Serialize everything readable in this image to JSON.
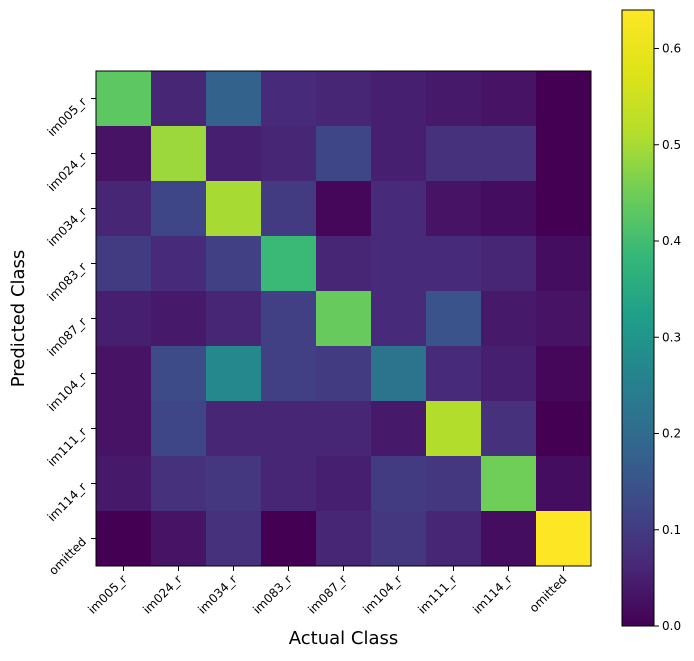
{
  "chart_data": {
    "type": "heatmap",
    "title": "",
    "xlabel": "Actual Class",
    "ylabel": "Predicted Class",
    "x_categories": [
      "im005_r",
      "im024_r",
      "im034_r",
      "im083_r",
      "im087_r",
      "im104_r",
      "im111_r",
      "im114_r",
      "omitted"
    ],
    "y_categories": [
      "im005_r",
      "im024_r",
      "im034_r",
      "im083_r",
      "im087_r",
      "im104_r",
      "im111_r",
      "im114_r",
      "omitted"
    ],
    "values": [
      [
        0.43,
        0.06,
        0.18,
        0.07,
        0.06,
        0.05,
        0.04,
        0.03,
        0.0
      ],
      [
        0.03,
        0.49,
        0.05,
        0.06,
        0.12,
        0.05,
        0.08,
        0.08,
        0.0
      ],
      [
        0.06,
        0.12,
        0.5,
        0.1,
        0.01,
        0.07,
        0.03,
        0.02,
        0.0
      ],
      [
        0.1,
        0.07,
        0.11,
        0.39,
        0.06,
        0.07,
        0.07,
        0.06,
        0.02
      ],
      [
        0.05,
        0.04,
        0.06,
        0.11,
        0.44,
        0.07,
        0.15,
        0.04,
        0.03
      ],
      [
        0.03,
        0.13,
        0.27,
        0.11,
        0.1,
        0.22,
        0.07,
        0.05,
        0.01
      ],
      [
        0.03,
        0.12,
        0.06,
        0.06,
        0.06,
        0.04,
        0.51,
        0.08,
        0.0
      ],
      [
        0.04,
        0.08,
        0.09,
        0.06,
        0.05,
        0.1,
        0.09,
        0.45,
        0.02
      ],
      [
        0.0,
        0.03,
        0.08,
        0.0,
        0.06,
        0.09,
        0.06,
        0.02,
        0.64
      ]
    ],
    "colormap": "viridis",
    "colorbar": {
      "range": [
        0.0,
        0.64
      ],
      "ticks": [
        0.0,
        0.1,
        0.2,
        0.3,
        0.4,
        0.5,
        0.6
      ],
      "tick_labels": [
        "0.0",
        "0.1",
        "0.2",
        "0.3",
        "0.4",
        "0.5",
        "0.6"
      ]
    },
    "grid": false
  }
}
